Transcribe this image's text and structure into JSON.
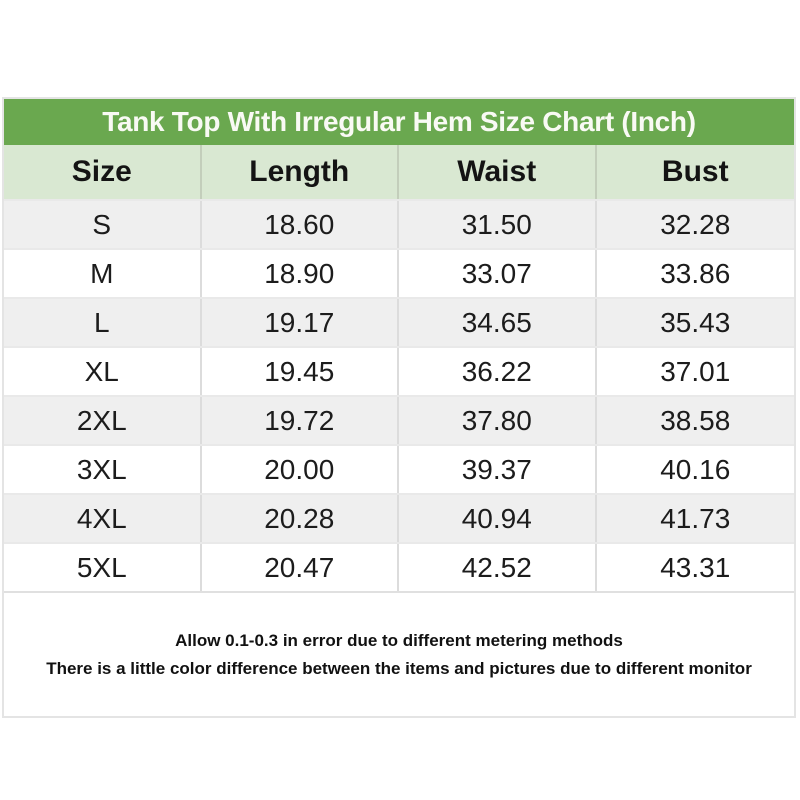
{
  "chart_data": {
    "type": "table",
    "title": "Tank Top With Irregular Hem Size Chart (Inch)",
    "columns": [
      "Size",
      "Length",
      "Waist",
      "Bust"
    ],
    "rows": [
      [
        "S",
        "18.60",
        "31.50",
        "32.28"
      ],
      [
        "M",
        "18.90",
        "33.07",
        "33.86"
      ],
      [
        "L",
        "19.17",
        "34.65",
        "35.43"
      ],
      [
        "XL",
        "19.45",
        "36.22",
        "37.01"
      ],
      [
        "2XL",
        "19.72",
        "37.80",
        "38.58"
      ],
      [
        "3XL",
        "20.00",
        "39.37",
        "40.16"
      ],
      [
        "4XL",
        "20.28",
        "40.94",
        "41.73"
      ],
      [
        "5XL",
        "20.47",
        "42.52",
        "43.31"
      ]
    ],
    "notes": [
      "Allow 0.1-0.3 in error due to different metering methods",
      "There is a little color difference between the items and pictures due to different monitor"
    ],
    "units": "Inch"
  },
  "colors": {
    "title_bar_bg": "#6aa84f",
    "title_text": "#f9faf4",
    "header_row_bg": "#d9e8d2",
    "row_alt_bg": "#efefef",
    "row_bg": "#ffffff",
    "border": "#dcdcdc",
    "text": "#1c1c1c"
  }
}
